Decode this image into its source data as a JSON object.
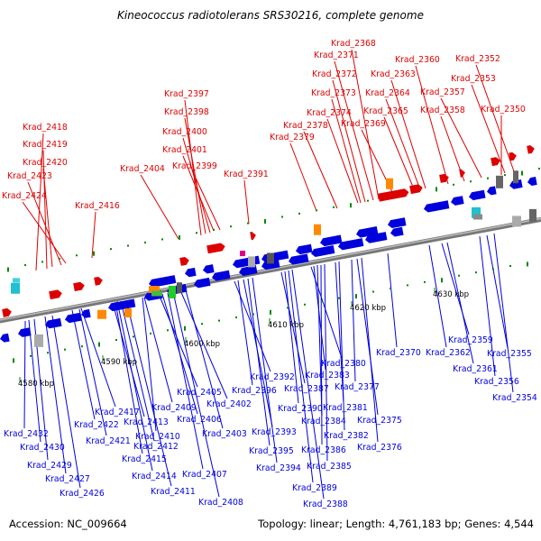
{
  "header": {
    "title": "Kineococcus radiotolerans SRS30216, complete genome"
  },
  "footer": {
    "accession": "Accession: NC_009664",
    "topology": "Topology: linear; Length: 4,761,183 bp; Genes: 4,544"
  },
  "colors": {
    "forward": "#dd0000",
    "reverse": "#0000dd",
    "backbone": "#999999"
  },
  "scale_labels": [
    "4580 kbp",
    "4590 kbp",
    "4600 kbp",
    "4610 kbp",
    "4620 kbp",
    "4630 kbp"
  ],
  "top_genes": [
    "Krad_2418",
    "Krad_2419",
    "Krad_2420",
    "Krad_2423",
    "Krad_2424",
    "Krad_2416",
    "Krad_2404",
    "Krad_2397",
    "Krad_2398",
    "Krad_2400",
    "Krad_2401",
    "Krad_2399",
    "Krad_2391",
    "Krad_2379",
    "Krad_2378",
    "Krad_2368",
    "Krad_2371",
    "Krad_2372",
    "Krad_2373",
    "Krad_2374",
    "Krad_2369",
    "Krad_2360",
    "Krad_2363",
    "Krad_2364",
    "Krad_2365",
    "Krad_2352",
    "Krad_2353",
    "Krad_2357",
    "Krad_2358",
    "Krad_2350"
  ],
  "bottom_genes": [
    "Krad_2432",
    "Krad_2430",
    "Krad_2429",
    "Krad_2427",
    "Krad_2426",
    "Krad_2417",
    "Krad_2422",
    "Krad_2421",
    "Krad_2413",
    "Krad_2415",
    "Krad_2414",
    "Krad_2412",
    "Krad_2411",
    "Krad_2409",
    "Krad_2410",
    "Krad_2405",
    "Krad_2406",
    "Krad_2407",
    "Krad_2408",
    "Krad_2402",
    "Krad_2403",
    "Krad_2392",
    "Krad_2396",
    "Krad_2393",
    "Krad_2395",
    "Krad_2394",
    "Krad_2387",
    "Krad_2390",
    "Krad_2389",
    "Krad_2388",
    "Krad_2380",
    "Krad_2383",
    "Krad_2384",
    "Krad_2386",
    "Krad_2385",
    "Krad_2381",
    "Krad_2382",
    "Krad_2377",
    "Krad_2375",
    "Krad_2376",
    "Krad_2370",
    "Krad_2362",
    "Krad_2359",
    "Krad_2361",
    "Krad_2355",
    "Krad_2356",
    "Krad_2354"
  ]
}
